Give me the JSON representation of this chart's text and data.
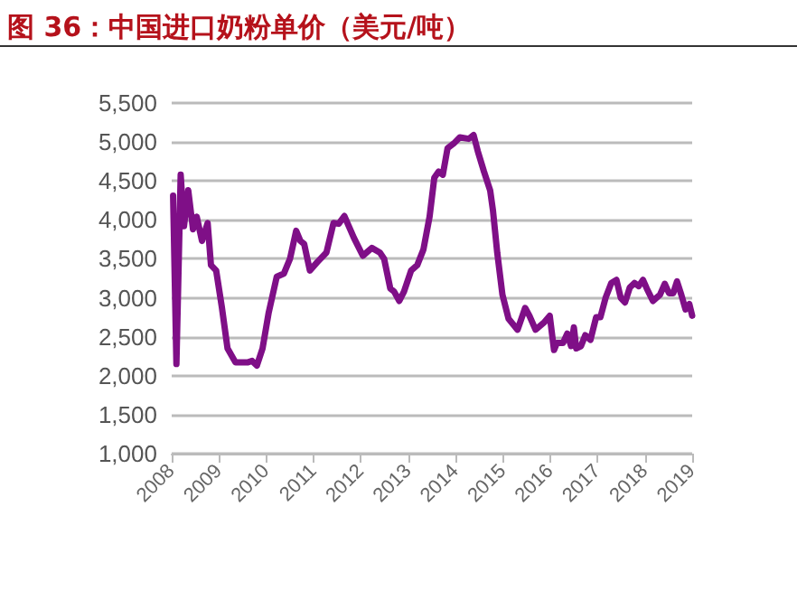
{
  "chart_data": {
    "type": "line",
    "title": "图 36：中国进口奶粉单价（美元/吨）",
    "x": [
      2008.03,
      2008.1,
      2008.19,
      2008.26,
      2008.35,
      2008.45,
      2008.53,
      2008.64,
      2008.76,
      2008.83,
      2008.94,
      2009.06,
      2009.18,
      2009.35,
      2009.6,
      2009.7,
      2009.8,
      2009.92,
      2010.05,
      2010.22,
      2010.37,
      2010.5,
      2010.63,
      2010.72,
      2010.8,
      2010.92,
      2011.08,
      2011.27,
      2011.42,
      2011.53,
      2011.65,
      2011.85,
      2012.04,
      2012.23,
      2012.4,
      2012.49,
      2012.62,
      2012.7,
      2012.81,
      2012.91,
      2013.06,
      2013.19,
      2013.32,
      2013.45,
      2013.55,
      2013.64,
      2013.73,
      2013.83,
      2013.96,
      2014.09,
      2014.28,
      2014.38,
      2014.47,
      2014.6,
      2014.73,
      2014.79,
      2014.88,
      2014.99,
      2015.12,
      2015.31,
      2015.47,
      2015.56,
      2015.69,
      2015.88,
      2015.99,
      2016.08,
      2016.14,
      2016.27,
      2016.36,
      2016.44,
      2016.5,
      2016.55,
      2016.65,
      2016.74,
      2016.85,
      2016.97,
      2017.06,
      2017.17,
      2017.29,
      2017.4,
      2017.49,
      2017.58,
      2017.68,
      2017.78,
      2017.87,
      2017.96,
      2018.04,
      2018.17,
      2018.32,
      2018.42,
      2018.51,
      2018.6,
      2018.68,
      2018.77,
      2018.86,
      2018.94,
      2019.0
    ],
    "series": [
      {
        "color": "#7f0f87",
        "values": [
          4310,
          2150,
          4580,
          3920,
          4380,
          3880,
          4040,
          3730,
          3960,
          3420,
          3350,
          2880,
          2350,
          2170,
          2170,
          2190,
          2130,
          2350,
          2810,
          3270,
          3310,
          3500,
          3860,
          3730,
          3690,
          3350,
          3460,
          3580,
          3960,
          3950,
          4050,
          3770,
          3540,
          3640,
          3580,
          3500,
          3120,
          3080,
          2960,
          3080,
          3350,
          3420,
          3620,
          4040,
          4540,
          4620,
          4580,
          4920,
          4980,
          5060,
          5040,
          5090,
          4880,
          4620,
          4380,
          4120,
          3580,
          3040,
          2730,
          2590,
          2870,
          2770,
          2590,
          2690,
          2770,
          2330,
          2420,
          2420,
          2540,
          2380,
          2620,
          2350,
          2380,
          2520,
          2460,
          2750,
          2750,
          3000,
          3190,
          3230,
          3000,
          2940,
          3130,
          3190,
          3150,
          3230,
          3120,
          2960,
          3040,
          3180,
          3060,
          3060,
          3210,
          3040,
          2850,
          2920,
          2770
        ]
      }
    ],
    "xlim": [
      2008,
      2019
    ],
    "xticks": [
      2008,
      2009,
      2010,
      2011,
      2012,
      2013,
      2014,
      2015,
      2016,
      2017,
      2018,
      2019
    ],
    "ylim": [
      1000,
      5500
    ],
    "yticks": [
      {
        "value": 1000,
        "label": "1,000"
      },
      {
        "value": 1500,
        "label": "1,500"
      },
      {
        "value": 2000,
        "label": "2,000"
      },
      {
        "value": 2500,
        "label": "2,500"
      },
      {
        "value": 3000,
        "label": "3,000"
      },
      {
        "value": 3500,
        "label": "3,500"
      },
      {
        "value": 4000,
        "label": "4,000"
      },
      {
        "value": 4500,
        "label": "4,500"
      },
      {
        "value": 5000,
        "label": "5,000"
      },
      {
        "value": 5500,
        "label": "5,500"
      }
    ],
    "grid": "y",
    "marker": "none",
    "line_style": "solid"
  }
}
